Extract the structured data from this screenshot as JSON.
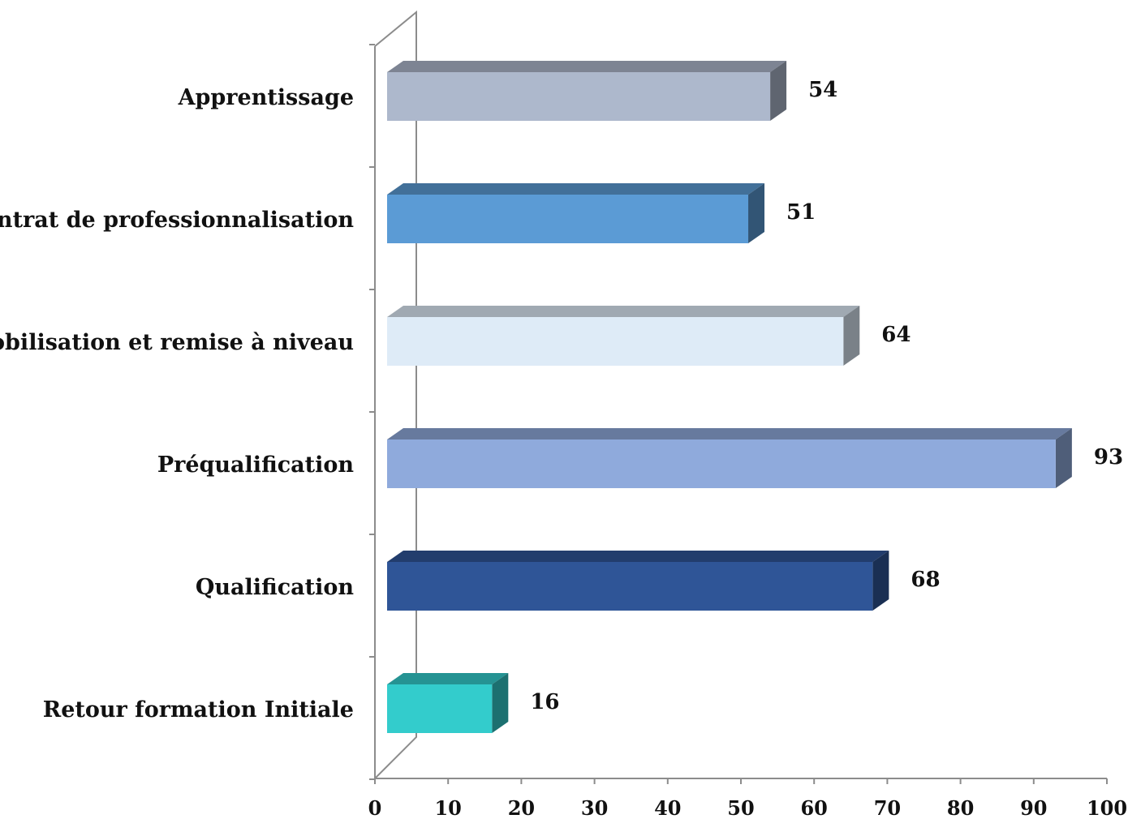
{
  "chart_data": {
    "type": "bar",
    "orientation": "horizontal",
    "style": "3d",
    "categories": [
      "Apprentissage",
      "Contrat de professionnalisation",
      "Mobilisation et remise à niveau",
      "Préqualification",
      "Qualification",
      "Retour formation Initiale"
    ],
    "values": [
      54,
      51,
      64,
      93,
      68,
      16
    ],
    "data_labels": [
      "54",
      "51",
      "64",
      "93",
      "68",
      "16"
    ],
    "colors": [
      "#adb8cc",
      "#5b9bd5",
      "#deebf7",
      "#8faadc",
      "#2f5597",
      "#33cccc"
    ],
    "xlim": [
      0,
      100
    ],
    "xticks": [
      "0",
      "10",
      "20",
      "30",
      "40",
      "50",
      "60",
      "70",
      "80",
      "90",
      "100"
    ],
    "title": "",
    "xlabel": "",
    "ylabel": "",
    "grid": false,
    "legend": "none"
  }
}
